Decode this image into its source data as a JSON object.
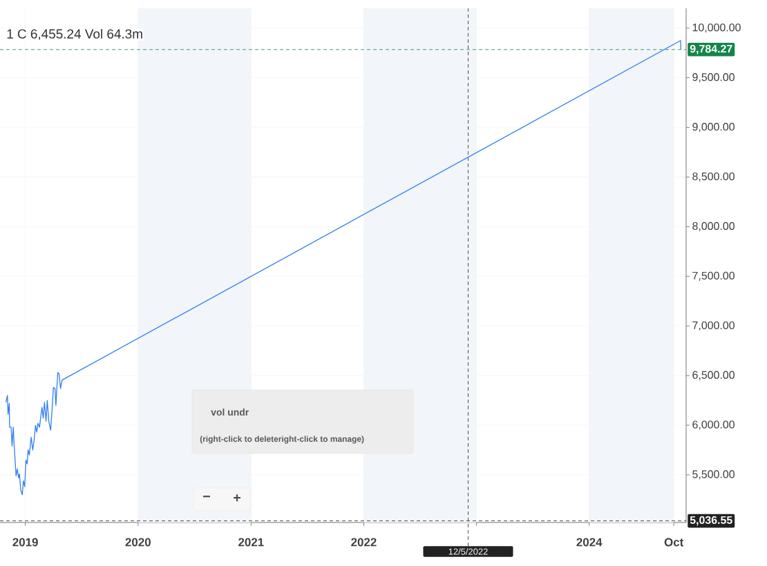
{
  "chart_data": {
    "type": "line",
    "color": "#2f7ef2",
    "marker": "none",
    "line_style": "solid",
    "grid": true,
    "x": [
      "2018-10-30",
      "2018-11-04",
      "2018-11-06",
      "2018-11-10",
      "2018-11-11",
      "2018-11-16",
      "2018-11-19",
      "2018-11-23",
      "2018-11-26",
      "2018-12-02",
      "2018-12-06",
      "2018-12-10",
      "2018-12-13",
      "2018-12-17",
      "2018-12-22",
      "2018-12-26",
      "2018-12-30",
      "2019-01-03",
      "2019-01-07",
      "2019-01-10",
      "2019-01-14",
      "2019-01-20",
      "2019-01-25",
      "2019-01-29",
      "2019-02-03",
      "2019-02-07",
      "2019-02-11",
      "2019-02-16",
      "2019-02-19",
      "2019-02-24",
      "2019-02-28",
      "2019-03-04",
      "2019-03-09",
      "2019-03-13",
      "2019-03-18",
      "2019-03-24",
      "2019-03-28",
      "2019-04-02",
      "2019-04-07",
      "2019-04-10",
      "2019-04-16",
      "2019-04-20",
      "2019-04-25",
      "2019-04-30",
      "2024-10-23",
      "2024-10-24"
    ],
    "values": [
      6230,
      6300,
      6110,
      6220,
      5980,
      5980,
      5790,
      5980,
      5790,
      5490,
      5560,
      5470,
      5510,
      5350,
      5300,
      5440,
      5380,
      5650,
      5610,
      5750,
      5700,
      5880,
      5750,
      5840,
      6000,
      5930,
      6020,
      5980,
      6060,
      6180,
      6070,
      6230,
      6040,
      6250,
      6040,
      5950,
      6130,
      6380,
      6370,
      6200,
      6530,
      6520,
      6370,
      6455,
      9875,
      9784
    ],
    "xlim": [
      "2018-10-11",
      "2024-11-10"
    ],
    "xticks": [
      {
        "value": "2019-01-01",
        "label": "2019"
      },
      {
        "value": "2020-01-01",
        "label": "2020"
      },
      {
        "value": "2021-01-01",
        "label": "2021"
      },
      {
        "value": "2022-01-01",
        "label": "2022"
      },
      {
        "value": "2023-01-01",
        "label": null
      },
      {
        "value": "2024-01-01",
        "label": "2024"
      },
      {
        "value": "2024-10-01",
        "label": "Oct"
      }
    ],
    "ylim": [
      5020,
      10200
    ],
    "yticks": [
      {
        "value": 5500,
        "label": "5,500.00"
      },
      {
        "value": 6000,
        "label": "6,000.00"
      },
      {
        "value": 6500,
        "label": "6,500.00"
      },
      {
        "value": 7000,
        "label": "7,000.00"
      },
      {
        "value": 7500,
        "label": "7,500.00"
      },
      {
        "value": 8000,
        "label": "8,000.00"
      },
      {
        "value": 8500,
        "label": "8,500.00"
      },
      {
        "value": 9000,
        "label": "9,000.00"
      },
      {
        "value": 9500,
        "label": "9,500.00"
      },
      {
        "value": 10000,
        "label": "10,000.00"
      }
    ],
    "bands": [
      {
        "axis": "x",
        "from": "2020-01-01",
        "to": "2021-01-01",
        "color": "#f2f5f9"
      },
      {
        "axis": "x",
        "from": "2022-01-01",
        "to": "2023-01-01",
        "color": "#f2f5f9"
      },
      {
        "axis": "x",
        "from": "2024-01-01",
        "to": "2024-10-01",
        "color": "#f2f5f9"
      }
    ],
    "ref_lines": [
      {
        "axis": "y",
        "value": 9784.27,
        "label": "9,784.27",
        "color": "#14854a",
        "line_style": "dashed"
      },
      {
        "axis": "y",
        "value": 5036.55,
        "label": "5,036.55",
        "color": "#222222",
        "line_style": "dashed"
      },
      {
        "axis": "x",
        "value": "2022-12-05",
        "label": "12/5/2022",
        "color": "#222222",
        "line_style": "dashed"
      }
    ],
    "annotations": [
      "1  C 6,455.24  Vol 64.3m",
      "vol undr",
      "(right-click to deleteright-click to manage)",
      "−",
      "+"
    ]
  }
}
